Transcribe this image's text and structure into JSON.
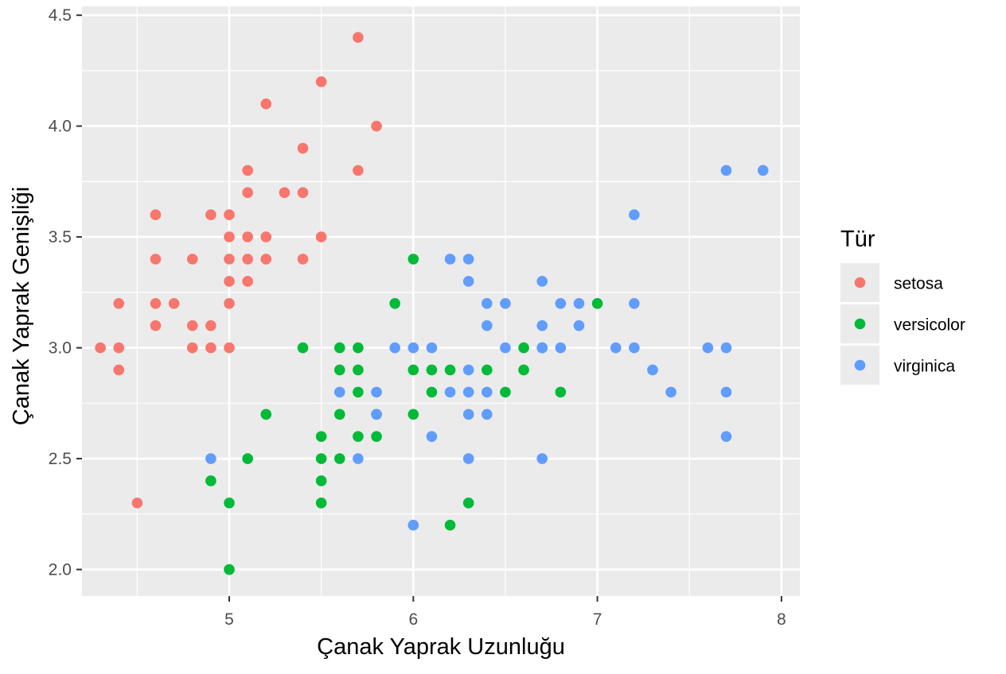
{
  "chart_data": {
    "type": "scatter",
    "title": "",
    "xlabel": "Çanak Yaprak Uzunluğu",
    "ylabel": "Çanak Yaprak Genişliği",
    "xlim": [
      4.2,
      8.1
    ],
    "ylim": [
      1.88,
      4.54
    ],
    "x_ticks": [
      5,
      6,
      7,
      8
    ],
    "x_tick_labels": [
      "5",
      "6",
      "7",
      "8"
    ],
    "y_ticks": [
      2.0,
      2.5,
      3.0,
      3.5,
      4.0,
      4.5
    ],
    "y_tick_labels": [
      "2.0",
      "2.5",
      "3.0",
      "3.5",
      "4.0",
      "4.5"
    ],
    "grid": true,
    "legend": {
      "title": "Tür",
      "position": "right"
    },
    "colors": {
      "panel": "#ebebeb",
      "grid": "#ffffff",
      "setosa": "#f8766d",
      "versicolor": "#00ba38",
      "virginica": "#619cff"
    },
    "series": [
      {
        "name": "setosa",
        "color": "#f8766d",
        "points": [
          [
            4.3,
            3.0
          ],
          [
            4.4,
            3.2
          ],
          [
            4.4,
            3.0
          ],
          [
            4.4,
            2.9
          ],
          [
            4.5,
            2.3
          ],
          [
            4.6,
            3.6
          ],
          [
            4.6,
            3.4
          ],
          [
            4.6,
            3.2
          ],
          [
            4.6,
            3.1
          ],
          [
            4.7,
            3.2
          ],
          [
            4.8,
            3.4
          ],
          [
            4.8,
            3.1
          ],
          [
            4.8,
            3.0
          ],
          [
            4.9,
            3.6
          ],
          [
            4.9,
            3.1
          ],
          [
            4.9,
            3.0
          ],
          [
            5.0,
            3.6
          ],
          [
            5.0,
            3.5
          ],
          [
            5.0,
            3.4
          ],
          [
            5.0,
            3.3
          ],
          [
            5.0,
            3.2
          ],
          [
            5.0,
            3.0
          ],
          [
            5.1,
            3.8
          ],
          [
            5.1,
            3.7
          ],
          [
            5.1,
            3.5
          ],
          [
            5.1,
            3.4
          ],
          [
            5.1,
            3.3
          ],
          [
            5.2,
            4.1
          ],
          [
            5.2,
            3.5
          ],
          [
            5.2,
            3.4
          ],
          [
            5.3,
            3.7
          ],
          [
            5.4,
            3.9
          ],
          [
            5.4,
            3.7
          ],
          [
            5.4,
            3.4
          ],
          [
            5.5,
            4.2
          ],
          [
            5.5,
            3.5
          ],
          [
            5.7,
            4.4
          ],
          [
            5.7,
            3.8
          ],
          [
            5.8,
            4.0
          ]
        ]
      },
      {
        "name": "versicolor",
        "color": "#00ba38",
        "points": [
          [
            4.9,
            2.4
          ],
          [
            5.0,
            2.3
          ],
          [
            5.0,
            2.0
          ],
          [
            5.1,
            2.5
          ],
          [
            5.2,
            2.7
          ],
          [
            5.4,
            3.0
          ],
          [
            5.5,
            2.6
          ],
          [
            5.5,
            2.5
          ],
          [
            5.5,
            2.4
          ],
          [
            5.5,
            2.3
          ],
          [
            5.6,
            3.0
          ],
          [
            5.6,
            2.9
          ],
          [
            5.6,
            2.7
          ],
          [
            5.6,
            2.5
          ],
          [
            5.7,
            3.0
          ],
          [
            5.7,
            2.9
          ],
          [
            5.7,
            2.8
          ],
          [
            5.7,
            2.6
          ],
          [
            5.8,
            2.7
          ],
          [
            5.8,
            2.6
          ],
          [
            5.9,
            3.2
          ],
          [
            6.0,
            3.4
          ],
          [
            6.0,
            2.9
          ],
          [
            6.0,
            2.7
          ],
          [
            6.1,
            2.9
          ],
          [
            6.1,
            2.8
          ],
          [
            6.2,
            2.9
          ],
          [
            6.2,
            2.2
          ],
          [
            6.3,
            2.3
          ],
          [
            6.4,
            2.9
          ],
          [
            6.5,
            2.8
          ],
          [
            6.6,
            3.0
          ],
          [
            6.6,
            2.9
          ],
          [
            6.7,
            3.0
          ],
          [
            6.8,
            2.8
          ],
          [
            7.0,
            3.2
          ]
        ]
      },
      {
        "name": "virginica",
        "color": "#619cff",
        "points": [
          [
            4.9,
            2.5
          ],
          [
            5.6,
            2.8
          ],
          [
            5.7,
            2.5
          ],
          [
            5.8,
            2.8
          ],
          [
            5.8,
            2.7
          ],
          [
            5.9,
            3.0
          ],
          [
            6.0,
            3.0
          ],
          [
            6.0,
            2.2
          ],
          [
            6.1,
            3.0
          ],
          [
            6.1,
            2.6
          ],
          [
            6.2,
            3.4
          ],
          [
            6.2,
            2.8
          ],
          [
            6.3,
            3.4
          ],
          [
            6.3,
            3.3
          ],
          [
            6.3,
            2.9
          ],
          [
            6.3,
            2.8
          ],
          [
            6.3,
            2.7
          ],
          [
            6.3,
            2.5
          ],
          [
            6.4,
            3.2
          ],
          [
            6.4,
            3.1
          ],
          [
            6.4,
            2.8
          ],
          [
            6.4,
            2.7
          ],
          [
            6.5,
            3.2
          ],
          [
            6.5,
            3.0
          ],
          [
            6.7,
            3.3
          ],
          [
            6.7,
            3.1
          ],
          [
            6.7,
            3.0
          ],
          [
            6.7,
            2.5
          ],
          [
            6.8,
            3.2
          ],
          [
            6.8,
            3.0
          ],
          [
            6.9,
            3.2
          ],
          [
            6.9,
            3.1
          ],
          [
            7.1,
            3.0
          ],
          [
            7.2,
            3.6
          ],
          [
            7.2,
            3.2
          ],
          [
            7.2,
            3.0
          ],
          [
            7.3,
            2.9
          ],
          [
            7.4,
            2.8
          ],
          [
            7.6,
            3.0
          ],
          [
            7.7,
            3.8
          ],
          [
            7.7,
            3.0
          ],
          [
            7.7,
            2.8
          ],
          [
            7.7,
            2.6
          ],
          [
            7.9,
            3.8
          ]
        ]
      }
    ]
  }
}
